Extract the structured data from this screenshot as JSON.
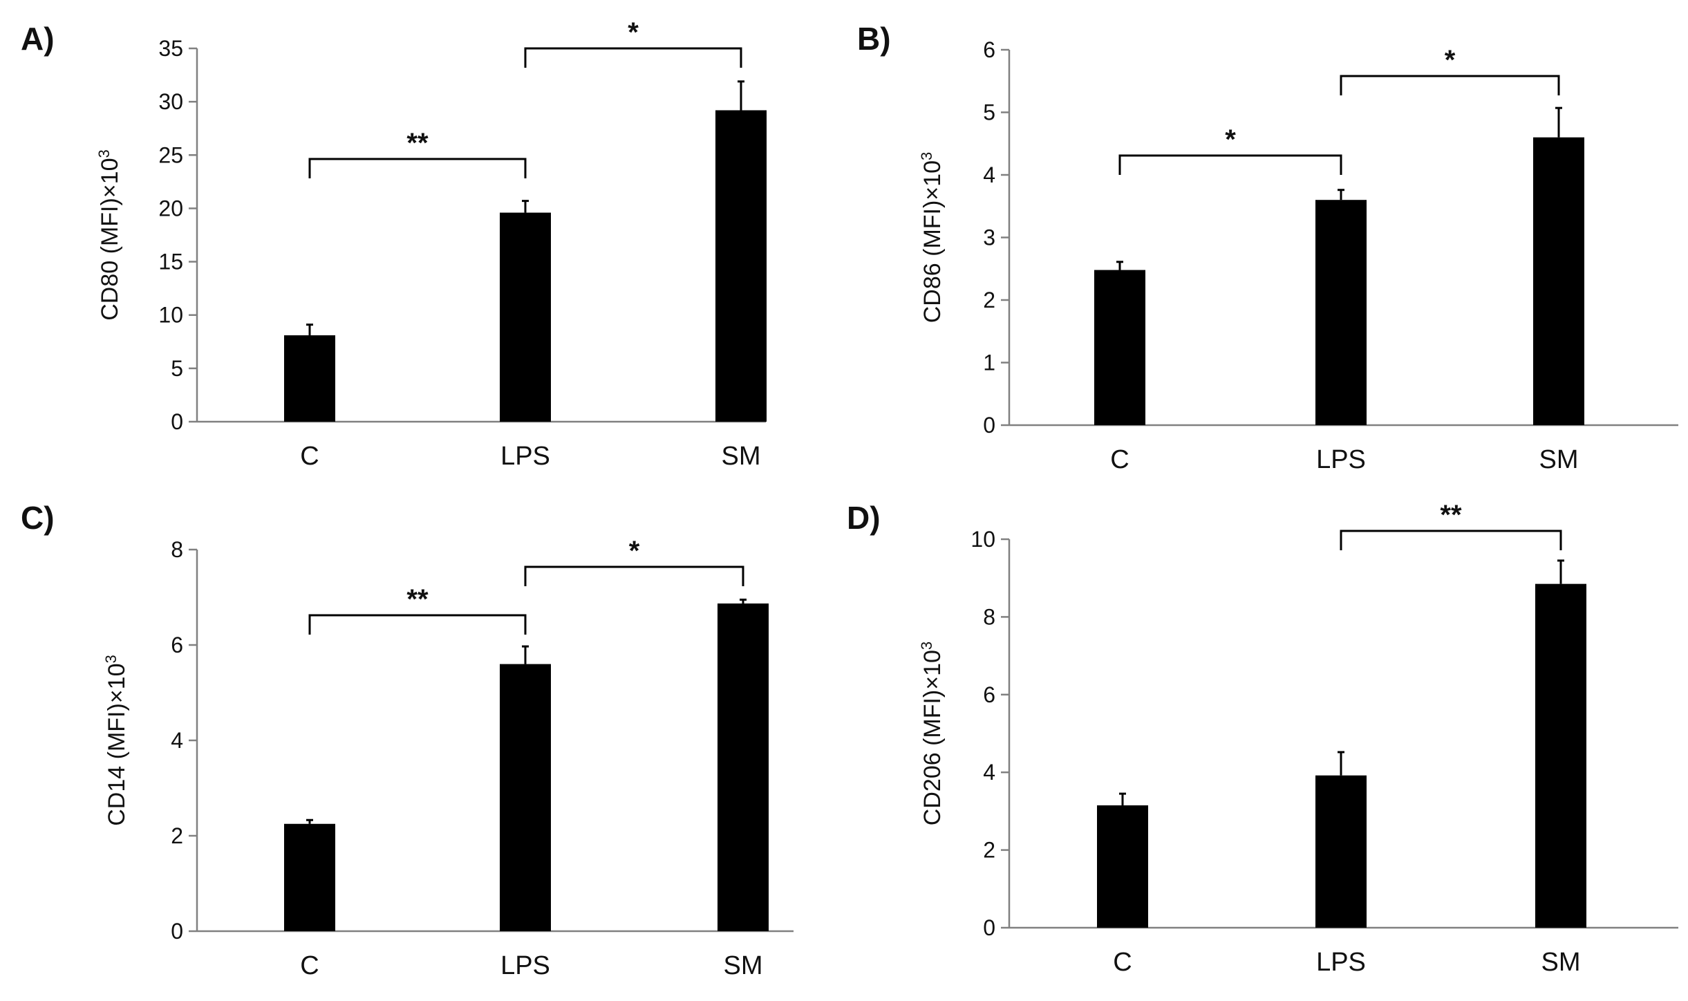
{
  "chart_data": [
    {
      "type": "bar",
      "panel_label": "A)",
      "ylabel_main": "CD80 (MFI)×10",
      "ylabel_sup": "3",
      "categories": [
        "C",
        "LPS",
        "SM"
      ],
      "values": [
        8.1,
        19.6,
        29.2
      ],
      "errors": [
        1.0,
        1.1,
        2.7
      ],
      "ylim": [
        0,
        35
      ],
      "yticks": [
        0,
        5,
        10,
        15,
        20,
        25,
        30,
        35
      ],
      "significance": [
        {
          "from": 0,
          "to": 1,
          "label": "**"
        },
        {
          "from": 1,
          "to": 2,
          "label": "*"
        }
      ]
    },
    {
      "type": "bar",
      "panel_label": "B)",
      "ylabel_main": "CD86 (MFI)×10",
      "ylabel_sup": "3",
      "categories": [
        "C",
        "LPS",
        "SM"
      ],
      "values": [
        2.48,
        3.6,
        4.6
      ],
      "errors": [
        0.13,
        0.16,
        0.47
      ],
      "ylim": [
        0,
        6
      ],
      "yticks": [
        0,
        1,
        2,
        3,
        4,
        5,
        6
      ],
      "significance": [
        {
          "from": 0,
          "to": 1,
          "label": "*"
        },
        {
          "from": 1,
          "to": 2,
          "label": "*"
        }
      ]
    },
    {
      "type": "bar",
      "panel_label": "C)",
      "ylabel_main": "CD14 (MFI)×10",
      "ylabel_sup": "3",
      "categories": [
        "C",
        "LPS",
        "SM"
      ],
      "values": [
        2.25,
        5.6,
        6.87
      ],
      "errors": [
        0.08,
        0.37,
        0.08
      ],
      "ylim": [
        0,
        8
      ],
      "yticks": [
        0,
        2,
        4,
        6,
        8
      ],
      "significance": [
        {
          "from": 0,
          "to": 1,
          "label": "**"
        },
        {
          "from": 1,
          "to": 2,
          "label": "*"
        }
      ]
    },
    {
      "type": "bar",
      "panel_label": "D)",
      "ylabel_main": "CD206 (MFI)×10",
      "ylabel_sup": "3",
      "categories": [
        "C",
        "LPS",
        "SM"
      ],
      "values": [
        3.15,
        3.92,
        8.85
      ],
      "errors": [
        0.3,
        0.6,
        0.6
      ],
      "ylim": [
        0,
        10
      ],
      "yticks": [
        0,
        2,
        4,
        6,
        8,
        10
      ],
      "significance": [
        {
          "from": 1,
          "to": 2,
          "label": "**"
        }
      ]
    }
  ]
}
